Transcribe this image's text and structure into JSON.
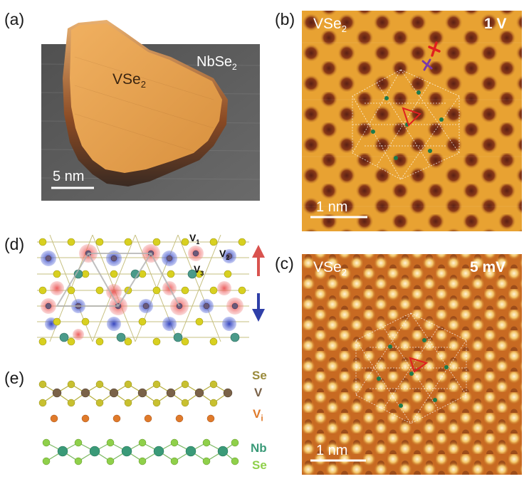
{
  "panels": {
    "a": {
      "label": "(a)",
      "material_island": "VSe",
      "material_island_sub": "2",
      "material_substrate": "NbSe",
      "material_substrate_sub": "2",
      "scalebar": "5 nm"
    },
    "b": {
      "label": "(b)",
      "material": "VSe",
      "material_sub": "2",
      "bias": "1 V",
      "scalebar": "1 nm"
    },
    "c": {
      "label": "(c)",
      "material": "VSe",
      "material_sub": "2",
      "bias": "5 mV",
      "scalebar": "1 nm"
    },
    "d": {
      "label": "(d)",
      "site_v1": "V",
      "site_v1_sub": "1",
      "site_v2": "V",
      "site_v2_sub": "2",
      "site_v3": "V",
      "site_v3_sub": "3",
      "spin_up": "up-arrow",
      "spin_down": "down-arrow"
    },
    "e": {
      "label": "(e)",
      "legend": [
        {
          "text": "Se",
          "sub": "",
          "color": "#9a8a3a"
        },
        {
          "text": "V",
          "sub": "",
          "color": "#7a6248"
        },
        {
          "text": "V",
          "sub": "i",
          "color": "#e07a2a"
        },
        {
          "text": "Nb",
          "sub": "",
          "color": "#3a9a78"
        },
        {
          "text": "Se",
          "sub": "",
          "color": "#8fd04a"
        }
      ]
    }
  },
  "colors": {
    "stm_base": "#e8a232",
    "stm_dark": "#5a1f14",
    "spin_up": "#d9534f",
    "spin_down": "#2f3fa8",
    "marker_red": "#e02020",
    "marker_purple": "#7a3aa8",
    "dot_green": "#1e7a4a"
  }
}
